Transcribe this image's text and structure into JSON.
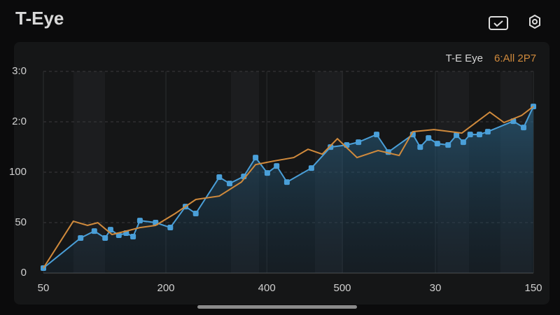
{
  "chart_data": {
    "type": "line",
    "title": "T-Eye",
    "grid": true,
    "xlim": [
      0,
      100
    ],
    "xticks": [
      {
        "value": 0,
        "label": "50"
      },
      {
        "value": 25,
        "label": "200"
      },
      {
        "value": 45.6,
        "label": "400"
      },
      {
        "value": 61,
        "label": "500"
      },
      {
        "value": 80,
        "label": "30"
      },
      {
        "value": 100,
        "label": "150"
      }
    ],
    "ylim": [
      0,
      200
    ],
    "yticks": [
      0,
      50,
      100,
      {
        "value": 150,
        "label": "2:0"
      },
      {
        "value": 200,
        "label": "3:0"
      }
    ],
    "series": [
      {
        "name": "T-E Eye",
        "color": "#4a9fd8",
        "x": [
          0,
          7.6,
          10.4,
          12.6,
          13.7,
          15.4,
          16.9,
          18.3,
          19.7,
          22.9,
          25.9,
          29,
          31.1,
          35.9,
          38,
          40.9,
          43.3,
          45.7,
          47.6,
          49.7,
          54.7,
          58.6,
          61.9,
          64.3,
          68,
          70.4,
          75.4,
          76.9,
          78.6,
          80.4,
          82.6,
          84.3,
          85.7,
          87.1,
          89,
          90.7,
          95.9,
          98,
          100
        ],
        "values": [
          4.9,
          34.7,
          41.6,
          34.7,
          43,
          37.5,
          39.6,
          36.1,
          52,
          50,
          45.1,
          65.9,
          59,
          95.1,
          88.8,
          95.8,
          114.5,
          99.2,
          106.2,
          90.2,
          104.1,
          124.9,
          127,
          129.8,
          137.4,
          120,
          137.4,
          124.9,
          133.9,
          128.4,
          127,
          136.7,
          129.8,
          137.4,
          137.4,
          140.2,
          150.6,
          144.4,
          165.2
        ]
      },
      {
        "name": "6:All 2P7",
        "color": "#d08a3c",
        "x": [
          0,
          6.1,
          9,
          11.1,
          14,
          16.9,
          19.7,
          22.9,
          26.9,
          31.1,
          35.9,
          40.4,
          43.3,
          46.9,
          51.1,
          54,
          56.9,
          60,
          64,
          68.3,
          72.6,
          75.4,
          79.7,
          85.4,
          91.1,
          94,
          97.6,
          100
        ],
        "values": [
          4.9,
          51.3,
          47.2,
          49.9,
          38.2,
          41.6,
          45.1,
          47.2,
          59,
          72.9,
          76.3,
          90.2,
          107.6,
          111,
          114.5,
          122.8,
          117.9,
          133.2,
          114.5,
          121.5,
          116.6,
          140.2,
          142.3,
          138.8,
          159.6,
          149.3,
          156.3,
          165.2
        ]
      }
    ]
  }
}
